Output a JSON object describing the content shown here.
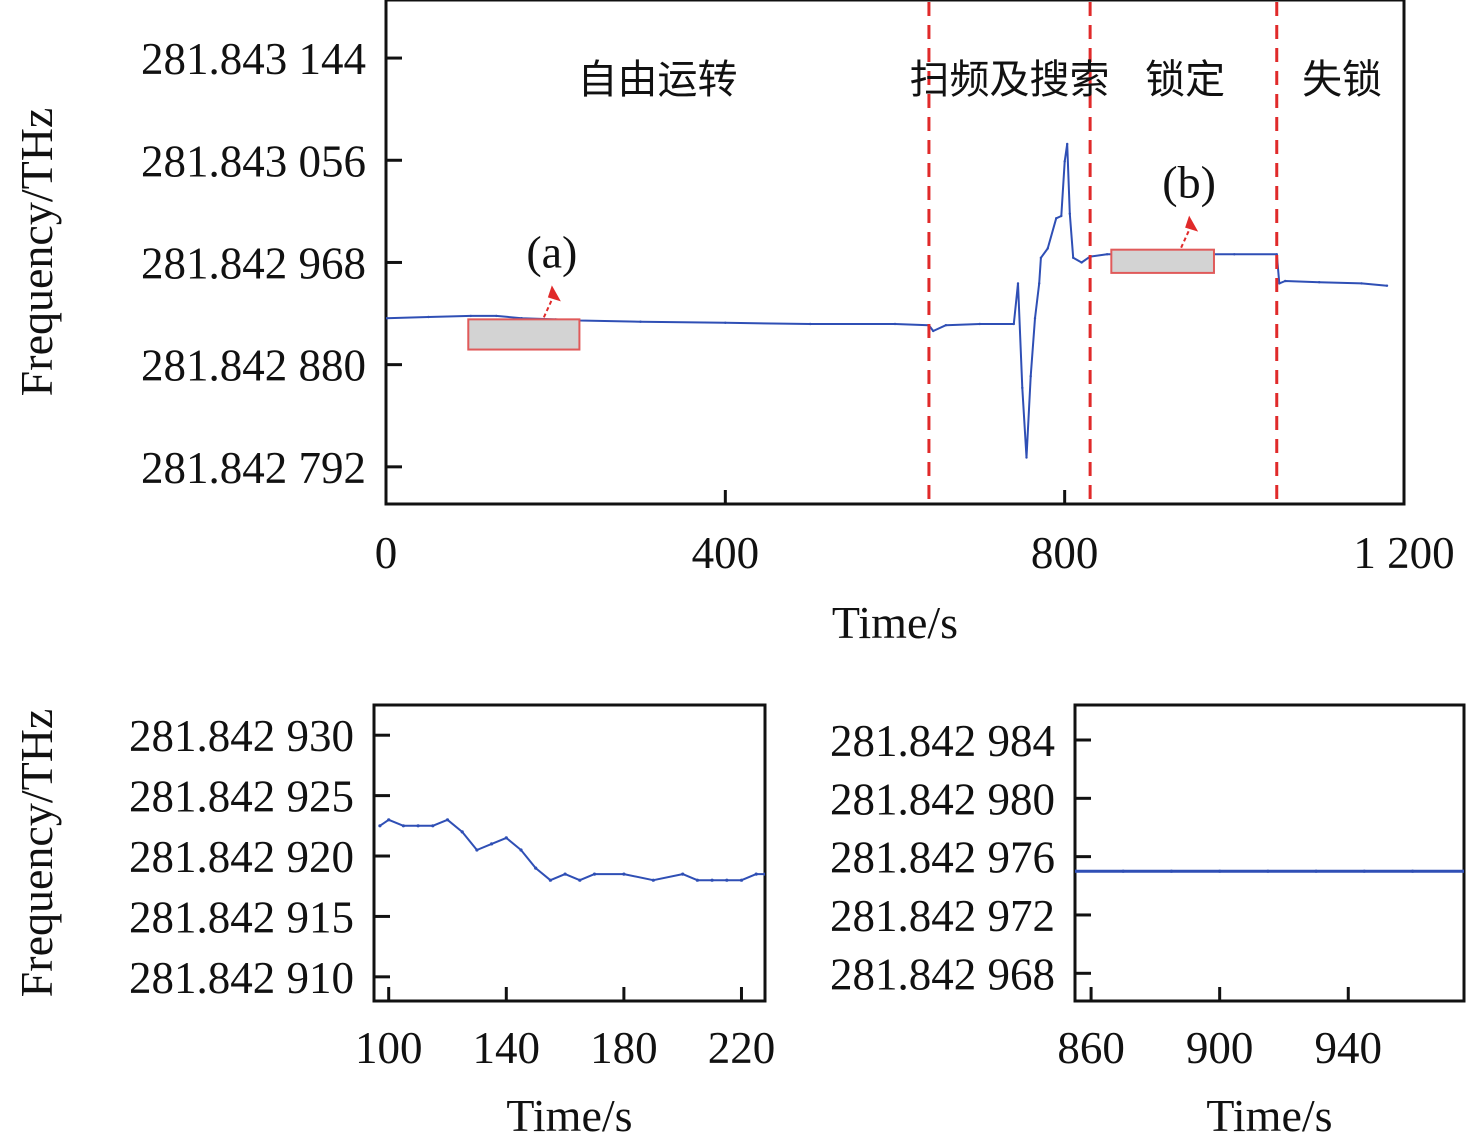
{
  "chart_data": [
    {
      "type": "line",
      "xlabel": "Time/s",
      "ylabel": "Frequency/THz",
      "xlim": [
        0,
        1200
      ],
      "ylim": [
        281.84276,
        281.843194
      ],
      "x_ticks": [
        0,
        400,
        800,
        1200
      ],
      "x_tick_labels": [
        "0",
        "400",
        "800",
        "1 200"
      ],
      "y_ticks": [
        281.842792,
        281.84288,
        281.842968,
        281.843056,
        281.843144
      ],
      "y_tick_labels": [
        "281.842 792",
        "281.842 880",
        "281.842 968",
        "281.843 056",
        "281.843 144"
      ],
      "line_color": "#2f4fb5",
      "marker_line_color": "#e02a2a",
      "phase_boundaries": [
        640,
        830,
        1050
      ],
      "phase_labels": [
        {
          "text": "自由运转",
          "x": 320
        },
        {
          "text": "扫频及搜索",
          "x": 735
        },
        {
          "text": "锁定",
          "x": 942
        },
        {
          "text": "失锁",
          "x": 1127
        }
      ],
      "inset_boxes": [
        {
          "label": "(a)",
          "x_range": [
            97,
            228
          ],
          "y_range": [
            281.842893,
            281.842919
          ]
        },
        {
          "label": "(b)",
          "x_range": [
            855,
            976
          ],
          "y_range": [
            281.842959,
            281.842979
          ]
        }
      ],
      "series": [
        {
          "x": [
            0,
            50,
            100,
            130,
            160,
            200,
            228,
            300,
            400,
            500,
            600,
            640,
            645,
            660,
            700,
            740,
            745,
            750,
            755,
            760,
            765,
            770,
            772,
            780,
            790,
            796,
            800,
            803,
            806,
            810,
            820,
            830,
            850,
            900,
            950,
            1000,
            1050,
            1053,
            1060,
            1100,
            1150,
            1180
          ],
          "y": [
            281.84292,
            281.842921,
            281.842922,
            281.842922,
            281.84292,
            281.842919,
            281.842918,
            281.842917,
            281.842916,
            281.842915,
            281.842915,
            281.842914,
            281.842909,
            281.842914,
            281.842915,
            281.842915,
            281.84295,
            281.84286,
            281.8428,
            281.84287,
            281.84292,
            281.84295,
            281.842972,
            281.84298,
            281.843006,
            281.843008,
            281.843055,
            281.84307,
            281.84301,
            281.842972,
            281.842968,
            281.842973,
            281.842975,
            281.842975,
            281.842975,
            281.842975,
            281.842975,
            281.84295,
            281.842952,
            281.842951,
            281.84295,
            281.842948
          ]
        }
      ]
    },
    {
      "type": "line",
      "inset": "(a)",
      "xlabel": "Time/s",
      "ylabel": "Frequency/THz",
      "xlim": [
        95,
        228
      ],
      "ylim": [
        281.842908,
        281.8429325
      ],
      "x_ticks": [
        100,
        140,
        180,
        220
      ],
      "x_tick_labels": [
        "100",
        "140",
        "180",
        "220"
      ],
      "y_ticks": [
        281.84291,
        281.842915,
        281.84292,
        281.842925,
        281.84293
      ],
      "y_tick_labels": [
        "281.842 910",
        "281.842 915",
        "281.842 920",
        "281.842 925",
        "281.842 930"
      ],
      "line_color": "#2f4fb5",
      "series": [
        {
          "x": [
            97,
            100,
            105,
            110,
            115,
            120,
            125,
            130,
            135,
            140,
            145,
            150,
            155,
            160,
            165,
            170,
            180,
            190,
            200,
            205,
            210,
            215,
            220,
            225,
            228
          ],
          "y": [
            281.8429225,
            281.842923,
            281.8429225,
            281.8429225,
            281.8429225,
            281.842923,
            281.842922,
            281.8429205,
            281.842921,
            281.8429215,
            281.8429205,
            281.842919,
            281.842918,
            281.8429185,
            281.842918,
            281.8429185,
            281.8429185,
            281.842918,
            281.8429185,
            281.842918,
            281.842918,
            281.842918,
            281.842918,
            281.8429185,
            281.8429185
          ]
        }
      ]
    },
    {
      "type": "line",
      "inset": "(b)",
      "xlabel": "Time/s",
      "ylabel": "",
      "xlim": [
        855,
        976
      ],
      "ylim": [
        281.8429661,
        281.8429864
      ],
      "x_ticks": [
        860,
        900,
        940
      ],
      "x_tick_labels": [
        "860",
        "900",
        "940"
      ],
      "y_ticks": [
        281.842968,
        281.842972,
        281.842976,
        281.84298,
        281.842984
      ],
      "y_tick_labels": [
        "281.842 968",
        "281.842 972",
        "281.842 976",
        "281.842 980",
        "281.842 984"
      ],
      "line_color": "#2f4fb5",
      "series": [
        {
          "x": [
            855,
            870,
            885,
            900,
            915,
            930,
            945,
            960,
            976
          ],
          "y": [
            281.842975,
            281.842975,
            281.842975,
            281.842975,
            281.842975,
            281.842975,
            281.842975,
            281.842975,
            281.842975
          ]
        }
      ]
    }
  ]
}
